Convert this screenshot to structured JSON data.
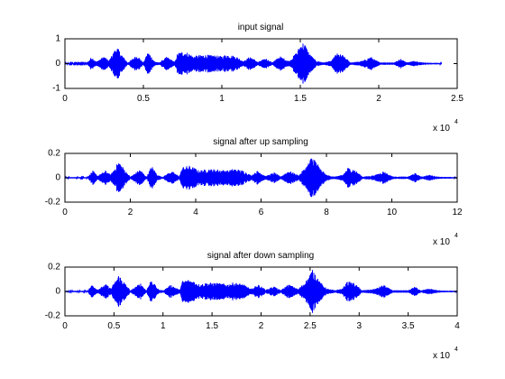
{
  "chart_data": [
    {
      "type": "line",
      "title": "input signal",
      "xlim": [
        0,
        25000
      ],
      "ylim": [
        -1,
        1
      ],
      "xticks": [
        0,
        5000,
        10000,
        15000,
        20000,
        25000
      ],
      "xtick_labels": [
        "0",
        "0.5",
        "1",
        "1.5",
        "2",
        "2.5"
      ],
      "yticks": [
        -1,
        0,
        1
      ],
      "ytick_labels": [
        "-1",
        "0",
        "1"
      ],
      "x_exponent_label": "x 10",
      "x_exponent_power": "4",
      "series_color": "#0000ff",
      "signal_length": 24000,
      "envelope": {
        "x": [
          0,
          1400,
          1700,
          2000,
          2500,
          2800,
          3300,
          3700,
          4000,
          4600,
          5000,
          5300,
          5700,
          6000,
          6500,
          7000,
          7200,
          7600,
          7900,
          8200,
          8700,
          9000,
          9500,
          10000,
          10300,
          10900,
          11400,
          11800,
          12300,
          12800,
          13200,
          13700,
          14300,
          14800,
          15100,
          15300,
          15600,
          16000,
          16500,
          17000,
          17300,
          17700,
          18200,
          18600,
          19000,
          19500,
          19800,
          20100,
          21000,
          21400,
          21800,
          22300,
          22800,
          23300,
          23700,
          24000
        ],
        "y": [
          0.02,
          0.02,
          0.28,
          0.08,
          0.3,
          0.12,
          0.7,
          0.3,
          0.04,
          0.35,
          0.04,
          0.5,
          0.1,
          0.04,
          0.28,
          0.07,
          0.45,
          0.5,
          0.42,
          0.3,
          0.36,
          0.36,
          0.34,
          0.3,
          0.38,
          0.3,
          0.1,
          0.3,
          0.07,
          0.22,
          0.05,
          0.3,
          0.1,
          0.5,
          0.9,
          0.8,
          0.4,
          0.12,
          0.05,
          0.12,
          0.42,
          0.35,
          0.05,
          0.07,
          0.12,
          0.28,
          0.14,
          0.05,
          0.05,
          0.2,
          0.05,
          0.12,
          0.05,
          0.03,
          0.03,
          0.02
        ]
      }
    },
    {
      "type": "line",
      "title": "signal after up sampling",
      "xlim": [
        0,
        120000
      ],
      "ylim": [
        -0.2,
        0.2
      ],
      "xticks": [
        0,
        20000,
        40000,
        60000,
        80000,
        100000,
        120000
      ],
      "xtick_labels": [
        "0",
        "2",
        "4",
        "6",
        "8",
        "10",
        "12"
      ],
      "yticks": [
        -0.2,
        0,
        0.2
      ],
      "ytick_labels": [
        "-0.2",
        "0",
        "0.2"
      ],
      "x_exponent_label": "x 10",
      "x_exponent_power": "4",
      "series_color": "#0000ff",
      "signal_length": 120000,
      "envelope": {
        "x": [
          0,
          7000,
          8500,
          10000,
          12500,
          14000,
          16500,
          18500,
          20000,
          23000,
          25000,
          26500,
          28500,
          30000,
          32500,
          35000,
          36000,
          38000,
          39500,
          41000,
          43500,
          45000,
          47500,
          50000,
          51500,
          54500,
          57000,
          59000,
          61500,
          64000,
          66000,
          68500,
          71500,
          74000,
          75500,
          76500,
          78000,
          80000,
          82500,
          85000,
          86500,
          88500,
          91000,
          93000,
          95000,
          97500,
          99000,
          100500,
          105000,
          107000,
          109000,
          111500,
          114000,
          116500,
          118500,
          120000
        ],
        "y": [
          0.005,
          0.005,
          0.06,
          0.016,
          0.06,
          0.025,
          0.14,
          0.06,
          0.008,
          0.07,
          0.008,
          0.1,
          0.02,
          0.008,
          0.056,
          0.014,
          0.09,
          0.1,
          0.084,
          0.06,
          0.072,
          0.072,
          0.068,
          0.06,
          0.076,
          0.06,
          0.02,
          0.06,
          0.014,
          0.044,
          0.01,
          0.06,
          0.02,
          0.1,
          0.18,
          0.16,
          0.08,
          0.024,
          0.01,
          0.024,
          0.084,
          0.07,
          0.01,
          0.014,
          0.024,
          0.056,
          0.028,
          0.01,
          0.01,
          0.04,
          0.01,
          0.024,
          0.01,
          0.006,
          0.006,
          0.005
        ]
      }
    },
    {
      "type": "line",
      "title": "signal after down sampling",
      "xlim": [
        0,
        40000
      ],
      "ylim": [
        -0.2,
        0.2
      ],
      "xticks": [
        0,
        5000,
        10000,
        15000,
        20000,
        25000,
        30000,
        35000,
        40000
      ],
      "xtick_labels": [
        "0",
        "0.5",
        "1",
        "1.5",
        "2",
        "2.5",
        "3",
        "3.5",
        "4"
      ],
      "yticks": [
        -0.2,
        0,
        0.2
      ],
      "ytick_labels": [
        "-0.2",
        "0",
        "0.2"
      ],
      "x_exponent_label": "x 10",
      "x_exponent_power": "4",
      "series_color": "#0000ff",
      "signal_length": 40000,
      "envelope": {
        "x": [
          0,
          2300,
          2800,
          3300,
          4200,
          4700,
          5500,
          6200,
          6700,
          7700,
          8300,
          8800,
          9500,
          10000,
          10800,
          11700,
          12000,
          12700,
          13200,
          13700,
          14500,
          15000,
          15800,
          16700,
          17200,
          18200,
          19000,
          19700,
          20500,
          21300,
          22000,
          22800,
          23800,
          24700,
          25200,
          25500,
          26000,
          26700,
          27500,
          28300,
          28800,
          29500,
          30300,
          31000,
          31700,
          32500,
          33000,
          33500,
          35000,
          35700,
          36300,
          37200,
          38000,
          38800,
          39500,
          40000
        ],
        "y": [
          0.005,
          0.005,
          0.06,
          0.016,
          0.06,
          0.025,
          0.14,
          0.06,
          0.008,
          0.07,
          0.008,
          0.1,
          0.02,
          0.008,
          0.056,
          0.014,
          0.09,
          0.1,
          0.084,
          0.06,
          0.072,
          0.072,
          0.068,
          0.06,
          0.076,
          0.06,
          0.02,
          0.06,
          0.014,
          0.044,
          0.01,
          0.06,
          0.02,
          0.1,
          0.18,
          0.16,
          0.08,
          0.024,
          0.01,
          0.024,
          0.084,
          0.07,
          0.01,
          0.014,
          0.024,
          0.056,
          0.028,
          0.01,
          0.01,
          0.04,
          0.01,
          0.024,
          0.01,
          0.006,
          0.006,
          0.005
        ]
      }
    }
  ]
}
